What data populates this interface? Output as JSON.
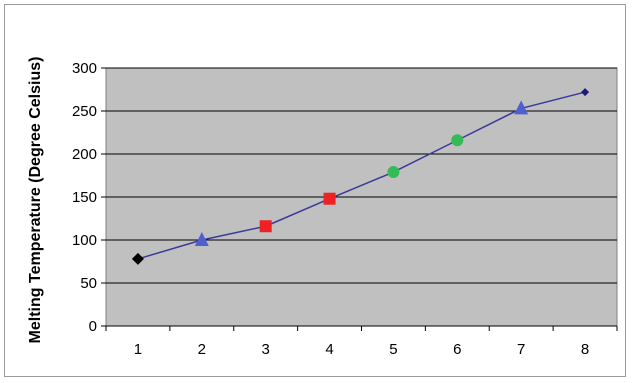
{
  "chart_data": {
    "type": "line",
    "title": "",
    "xlabel": "",
    "ylabel": "Melting Temperature (Degree Celsius)",
    "x": [
      1,
      2,
      3,
      4,
      5,
      6,
      7,
      8
    ],
    "xlim": [
      0.5,
      8.5
    ],
    "ylim": [
      0,
      300
    ],
    "yticks": [
      0,
      50,
      100,
      150,
      200,
      250,
      300
    ],
    "xticks": [
      1,
      2,
      3,
      4,
      5,
      6,
      7,
      8
    ],
    "grid": true,
    "legend": "none",
    "series": [
      {
        "line_color": "#3a3a9a",
        "points": [
          {
            "x": 1,
            "y": 78,
            "marker": "diamond",
            "color": "#000000"
          },
          {
            "x": 2,
            "y": 100,
            "marker": "triangle",
            "color": "#4f5fd0"
          },
          {
            "x": 3,
            "y": 116,
            "marker": "square",
            "color": "#ee2222"
          },
          {
            "x": 4,
            "y": 148,
            "marker": "square",
            "color": "#ee2222"
          },
          {
            "x": 5,
            "y": 179,
            "marker": "circle",
            "color": "#33bb55"
          },
          {
            "x": 6,
            "y": 216,
            "marker": "circle",
            "color": "#33bb55"
          },
          {
            "x": 7,
            "y": 253,
            "marker": "triangle",
            "color": "#4f5fd0"
          },
          {
            "x": 8,
            "y": 272,
            "marker": "diamond",
            "color": "#1a1a7a"
          }
        ]
      }
    ],
    "plot_background": "#c0c0c0",
    "gridline_color": "#000000"
  }
}
